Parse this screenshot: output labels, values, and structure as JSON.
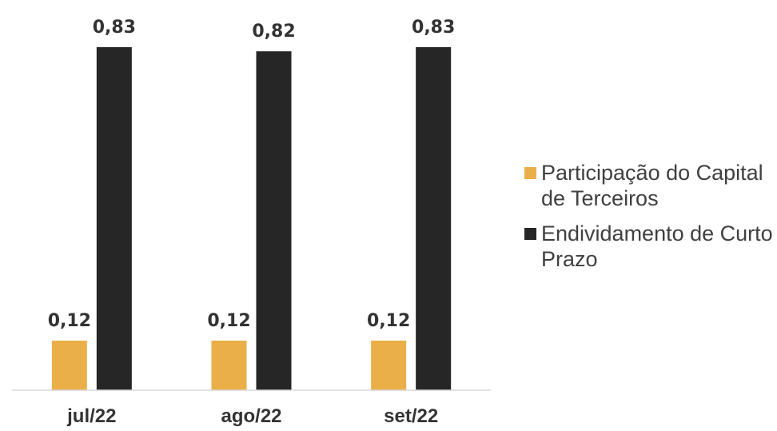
{
  "chart_data": {
    "type": "bar",
    "categories": [
      "jul/22",
      "ago/22",
      "set/22"
    ],
    "series": [
      {
        "name": "Participação do Capital de Terceiros",
        "values": [
          0.12,
          0.12,
          0.12
        ],
        "labels": [
          "0,12",
          "0,12",
          "0,12"
        ],
        "color": "#EAAF48"
      },
      {
        "name": "Endividamento de Curto Prazo",
        "values": [
          0.83,
          0.82,
          0.83
        ],
        "labels": [
          "0,83",
          "0,82",
          "0,83"
        ],
        "color": "#262626"
      }
    ],
    "ylim": [
      0,
      0.83
    ],
    "grid": false,
    "legend_position": "right"
  }
}
